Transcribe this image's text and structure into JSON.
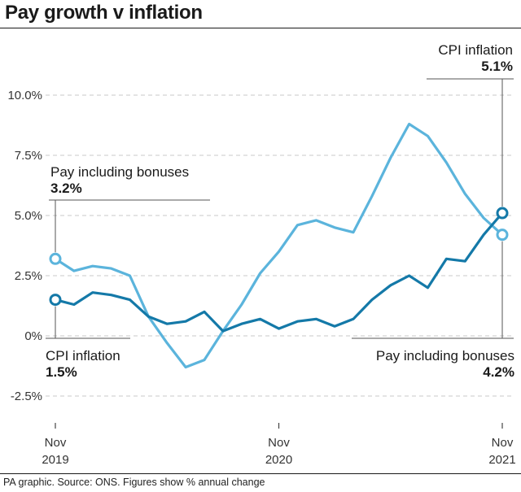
{
  "title": "Pay growth v inflation",
  "source": "PA graphic. Source: ONS. Figures show % annual change",
  "colors": {
    "pay": "#5bb4dc",
    "cpi": "#1479a8",
    "grid": "#c8c8c8",
    "text": "#1a1a1a"
  },
  "annotations": {
    "cpi_end_label": "CPI inflation",
    "cpi_end_value": "5.1%",
    "pay_start_label": "Pay including bonuses",
    "pay_start_value": "3.2%",
    "cpi_start_label": "CPI inflation",
    "cpi_start_value": "1.5%",
    "pay_end_label": "Pay including bonuses",
    "pay_end_value": "4.2%"
  },
  "chart_data": {
    "type": "line",
    "x": [
      "2019-11",
      "2019-12",
      "2020-01",
      "2020-02",
      "2020-03",
      "2020-04",
      "2020-05",
      "2020-06",
      "2020-07",
      "2020-08",
      "2020-09",
      "2020-10",
      "2020-11",
      "2020-12",
      "2021-01",
      "2021-02",
      "2021-03",
      "2021-04",
      "2021-05",
      "2021-06",
      "2021-07",
      "2021-08",
      "2021-09",
      "2021-10",
      "2021-11"
    ],
    "x_tick_labels": [
      {
        "x": "2019-11",
        "month": "Nov",
        "year": "2019"
      },
      {
        "x": "2020-11",
        "month": "Nov",
        "year": "2020"
      },
      {
        "x": "2021-11",
        "month": "Nov",
        "year": "2021"
      }
    ],
    "y_ticks": [
      "10.0%",
      "7.5%",
      "5.0%",
      "2.5%",
      "0%",
      "-2.5%"
    ],
    "y_tick_values": [
      10,
      7.5,
      5,
      2.5,
      0,
      -2.5
    ],
    "ylim": [
      -2.5,
      10
    ],
    "grid": "horizontal dashed",
    "series": [
      {
        "name": "Pay including bonuses",
        "color": "#5bb4dc",
        "values": [
          3.2,
          2.7,
          2.9,
          2.8,
          2.5,
          0.8,
          -0.3,
          -1.3,
          -1.0,
          0.2,
          1.3,
          2.6,
          3.5,
          4.6,
          4.8,
          4.5,
          4.3,
          5.8,
          7.4,
          8.8,
          8.3,
          7.2,
          5.9,
          4.9,
          4.2
        ]
      },
      {
        "name": "CPI inflation",
        "color": "#1479a8",
        "values": [
          1.5,
          1.3,
          1.8,
          1.7,
          1.5,
          0.8,
          0.5,
          0.6,
          1.0,
          0.2,
          0.5,
          0.7,
          0.3,
          0.6,
          0.7,
          0.4,
          0.7,
          1.5,
          2.1,
          2.5,
          2.0,
          3.2,
          3.1,
          4.2,
          5.1
        ]
      }
    ]
  }
}
